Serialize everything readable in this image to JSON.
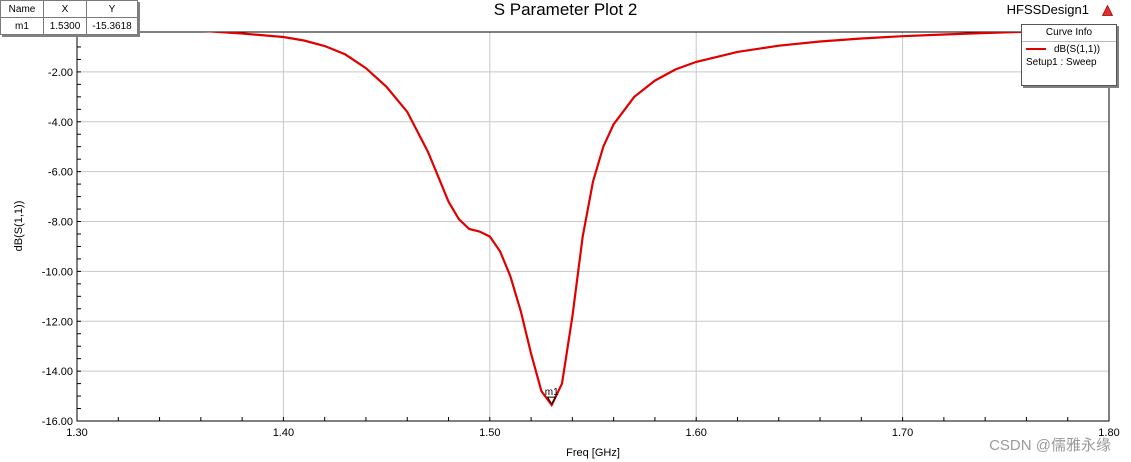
{
  "header": {
    "title": "S Parameter Plot 2",
    "design_name": "HFSSDesign1"
  },
  "marker_table": {
    "headers": [
      "Name",
      "X",
      "Y"
    ],
    "rows": [
      [
        "m1",
        "1.5300",
        "-15.3618"
      ]
    ]
  },
  "legend": {
    "title": "Curve Info",
    "series_label": "dB(S(1,1))",
    "series_sub": "Setup1 : Sweep",
    "series_color": "#e00000"
  },
  "watermark": "CSDN @儒雅永缘",
  "chart_data": {
    "type": "line",
    "xlabel": "Freq [GHz]",
    "ylabel": "dB(S(1,1))",
    "xlim": [
      1.3,
      1.8
    ],
    "ylim": [
      -16,
      -0.4
    ],
    "x_ticks": [
      "1.30",
      "1.40",
      "1.50",
      "1.60",
      "1.70",
      "1.80"
    ],
    "y_ticks": [
      "-2.00",
      "-4.00",
      "-6.00",
      "-8.00",
      "-10.00",
      "-12.00",
      "-14.00",
      "-16.00"
    ],
    "grid": true,
    "legend_position": "top-right",
    "series": [
      {
        "name": "dB(S(1,1))",
        "color": "#e00000",
        "x": [
          1.3,
          1.32,
          1.34,
          1.36,
          1.38,
          1.4,
          1.41,
          1.42,
          1.43,
          1.44,
          1.45,
          1.46,
          1.47,
          1.475,
          1.48,
          1.485,
          1.49,
          1.495,
          1.5,
          1.505,
          1.51,
          1.515,
          1.52,
          1.525,
          1.53,
          1.535,
          1.54,
          1.545,
          1.55,
          1.555,
          1.56,
          1.57,
          1.58,
          1.59,
          1.6,
          1.62,
          1.64,
          1.66,
          1.68,
          1.7,
          1.72,
          1.74,
          1.76,
          1.78,
          1.8
        ],
        "y": [
          -0.15,
          -0.2,
          -0.27,
          -0.35,
          -0.46,
          -0.6,
          -0.74,
          -0.96,
          -1.3,
          -1.85,
          -2.6,
          -3.6,
          -5.2,
          -6.2,
          -7.2,
          -7.9,
          -8.3,
          -8.4,
          -8.6,
          -9.2,
          -10.2,
          -11.6,
          -13.3,
          -14.8,
          -15.36,
          -14.5,
          -11.8,
          -8.6,
          -6.4,
          -5.0,
          -4.1,
          -3.0,
          -2.35,
          -1.9,
          -1.6,
          -1.2,
          -0.95,
          -0.78,
          -0.66,
          -0.57,
          -0.5,
          -0.44,
          -0.39,
          -0.35,
          -0.32
        ]
      }
    ],
    "markers": [
      {
        "name": "m1",
        "x": 1.53,
        "y": -15.3618
      }
    ]
  }
}
